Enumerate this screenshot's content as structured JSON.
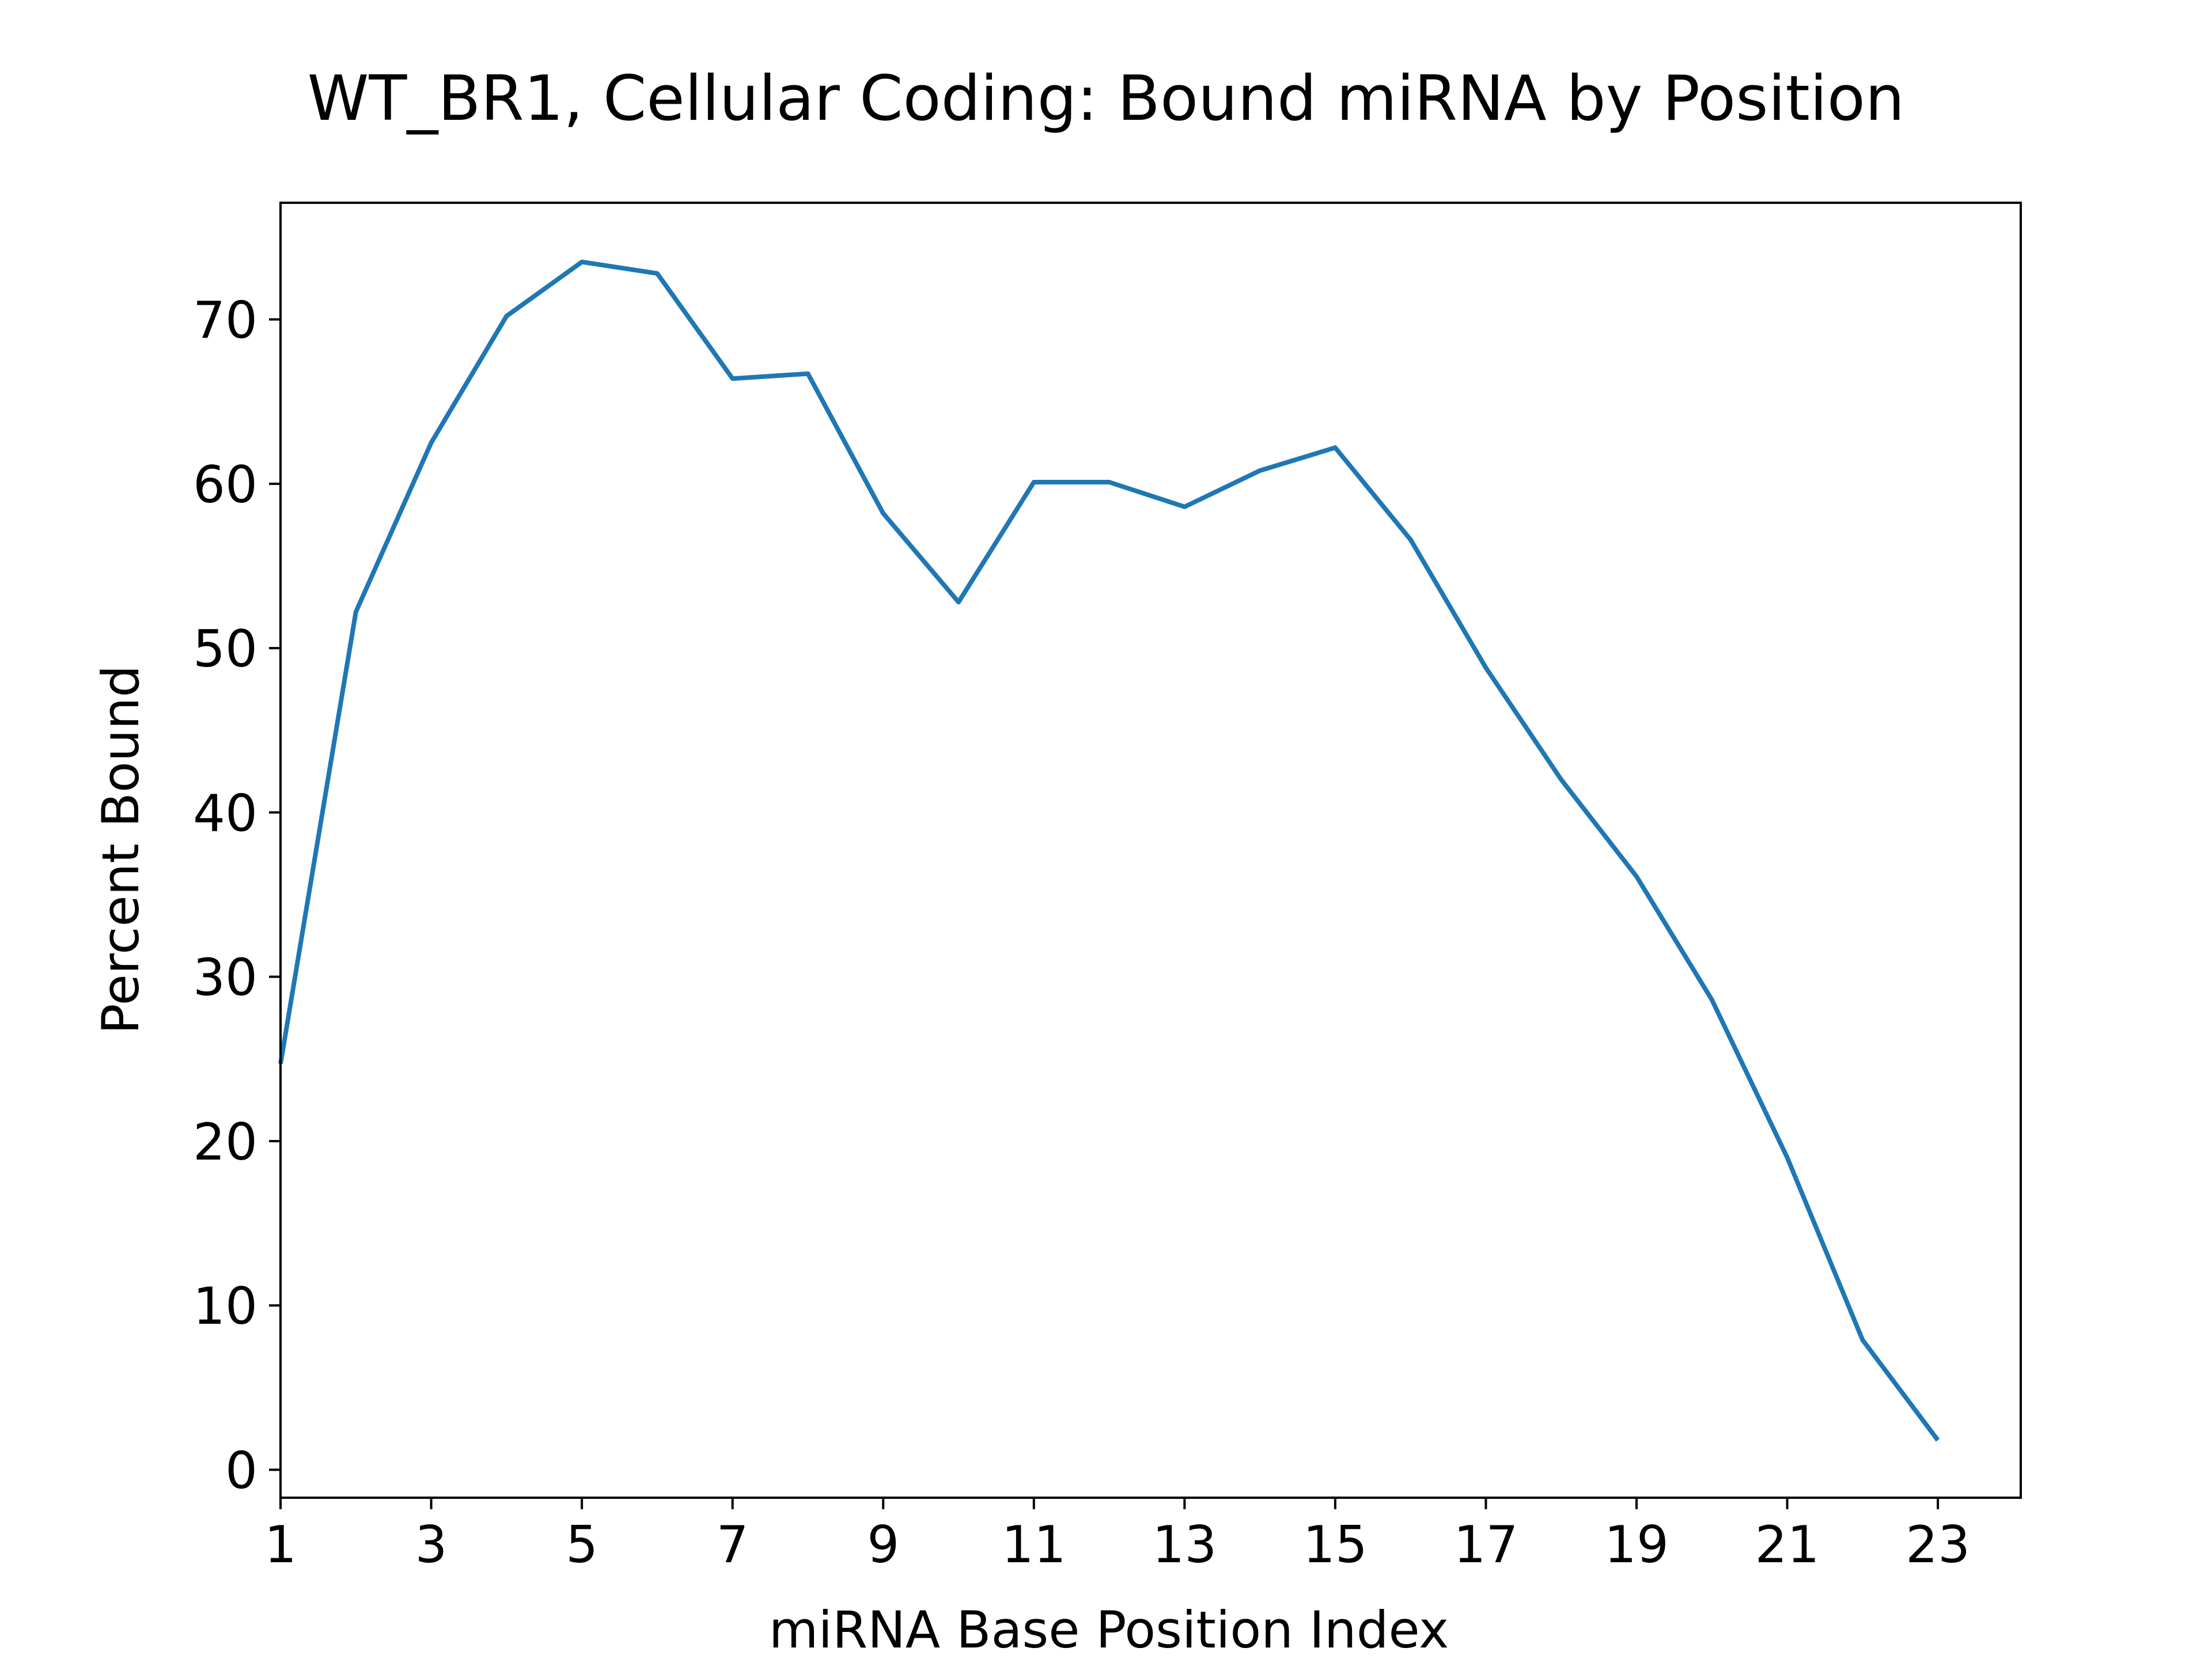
{
  "chart_data": {
    "type": "line",
    "title": "WT_BR1, Cellular Coding: Bound miRNA by Position",
    "xlabel": "miRNA Base Position Index",
    "ylabel": "Percent Bound",
    "xlim": [
      1,
      24.1
    ],
    "ylim": [
      -1.7,
      77.1
    ],
    "xticks": [
      "1",
      "3",
      "5",
      "7",
      "9",
      "11",
      "13",
      "15",
      "17",
      "19",
      "21",
      "23"
    ],
    "yticks": [
      "0",
      "10",
      "20",
      "30",
      "40",
      "50",
      "60",
      "70"
    ],
    "grid": false,
    "legend": "none",
    "series": [
      {
        "color": "#1f77b4",
        "x": [
          1,
          2,
          3,
          4,
          5,
          6,
          7,
          8,
          9,
          10,
          11,
          12,
          13,
          14,
          15,
          16,
          17,
          18,
          19,
          20,
          21,
          22,
          23
        ],
        "values": [
          24.7,
          52.2,
          62.5,
          70.2,
          73.5,
          72.8,
          66.4,
          66.7,
          58.2,
          52.8,
          60.1,
          60.1,
          58.6,
          60.8,
          62.2,
          56.6,
          48.8,
          42.0,
          36.1,
          28.6,
          19.0,
          7.9,
          1.8
        ]
      }
    ]
  }
}
